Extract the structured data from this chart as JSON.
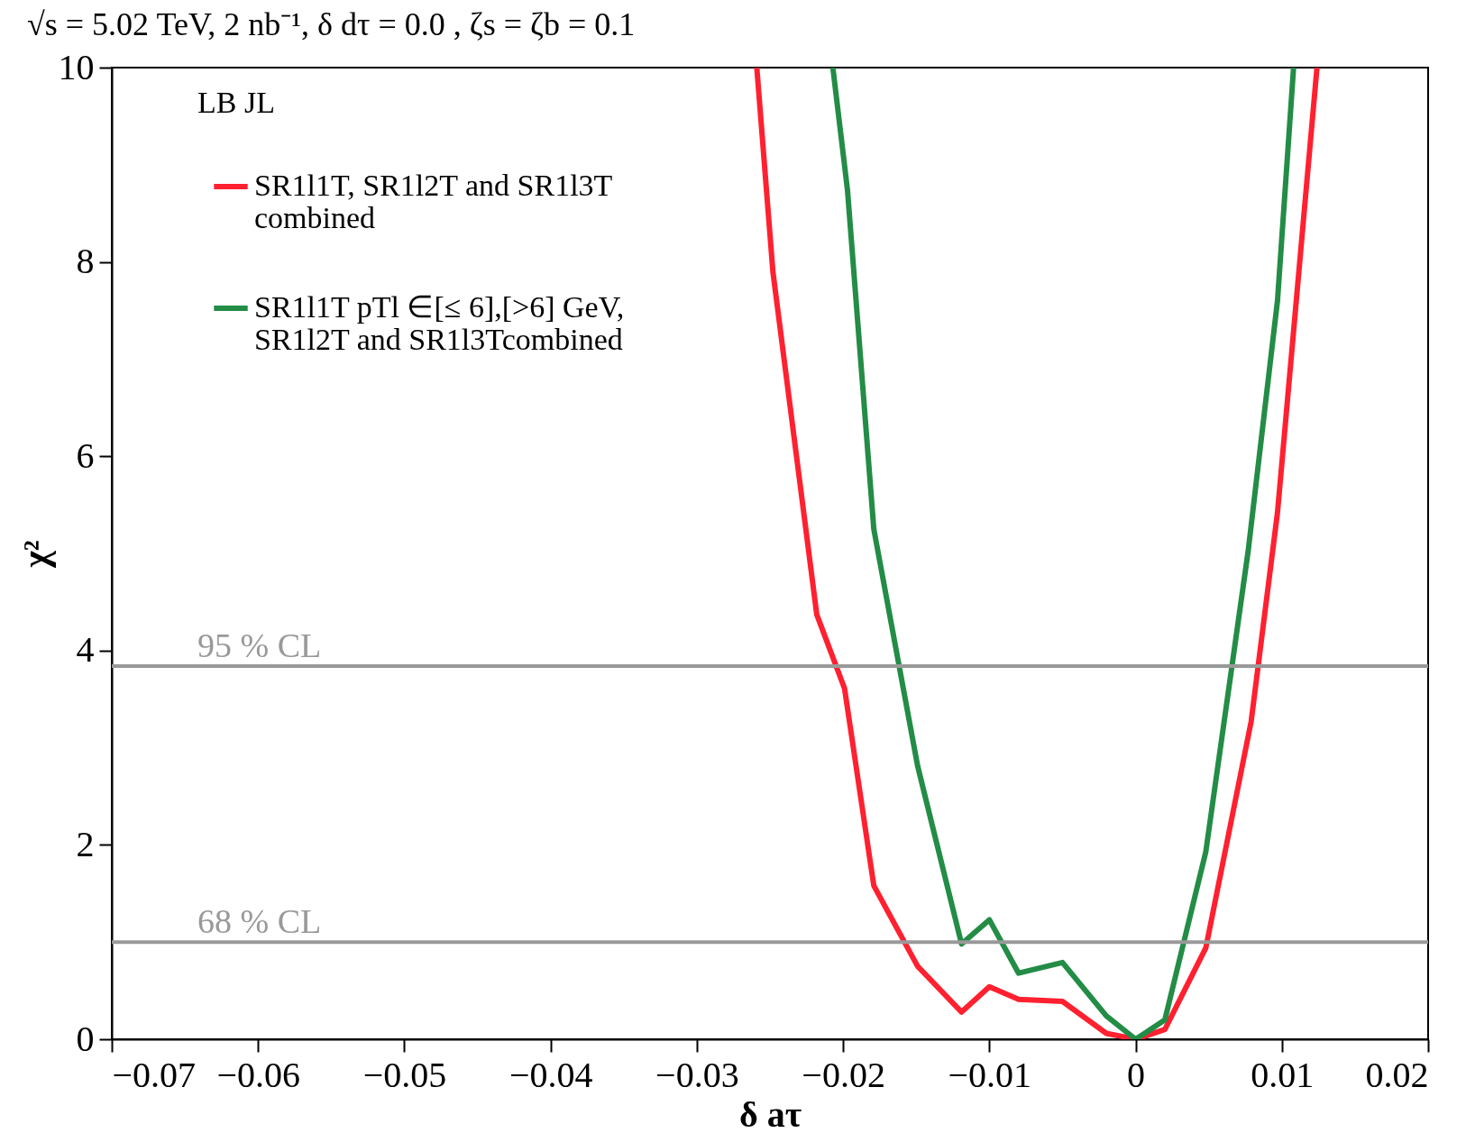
{
  "chart_data": {
    "type": "line",
    "title": "√s = 5.02 TeV, 2 nb⁻¹, δ dτ = 0.0 , ζs = ζb = 0.1",
    "xlabel": "δ aτ",
    "ylabel": "χ²",
    "annotations": [
      "LB JL"
    ],
    "xlim": [
      -0.07,
      0.02
    ],
    "xticks": [
      -0.07,
      -0.06,
      -0.05,
      -0.04,
      -0.03,
      -0.02,
      -0.01,
      {
        "value": 0,
        "label": "0"
      },
      0.01,
      0.02
    ],
    "ylim": [
      0,
      10
    ],
    "yticks": [
      0,
      2,
      4,
      6,
      8,
      10
    ],
    "series": [
      {
        "name": "SR1l1T, SR1l2T and SR1l3T combined",
        "color": "#ff2030",
        "x": [
          -0.0259,
          -0.0248,
          -0.0218,
          -0.0199,
          -0.0179,
          -0.0149,
          -0.0119,
          -0.01,
          -0.008,
          -0.005,
          -0.002,
          0,
          0.002,
          0.0048,
          0.0079,
          0.0097,
          0.0124
        ],
        "values": [
          10,
          7.9,
          4.37,
          3.61,
          1.58,
          0.75,
          0.28,
          0.54,
          0.41,
          0.39,
          0.06,
          0,
          0.1,
          0.94,
          3.27,
          5.42,
          10
        ]
      },
      {
        "name": "SR1l1T pTl ∈[≤ 6],[>6] GeV, SR1l2T and SR1l3Tcombined",
        "color": "#238c46",
        "x": [
          -0.0207,
          -0.0197,
          -0.0179,
          -0.0149,
          -0.0119,
          -0.01,
          -0.008,
          -0.005,
          -0.002,
          0,
          0.002,
          0.0048,
          0.0077,
          0.0097,
          0.0108
        ],
        "values": [
          10,
          8.74,
          5.25,
          2.81,
          0.98,
          1.23,
          0.68,
          0.79,
          0.24,
          0,
          0.2,
          1.93,
          5.03,
          7.6,
          10
        ]
      }
    ],
    "ref_lines": [
      {
        "axis": "y",
        "value": 3.84,
        "label": "95 % CL",
        "color": "#999999"
      },
      {
        "axis": "y",
        "value": 1,
        "label": "68 % CL",
        "color": "#999999"
      }
    ],
    "legend": "top left",
    "grid": false,
    "line_style": "solid",
    "marker": "none"
  }
}
